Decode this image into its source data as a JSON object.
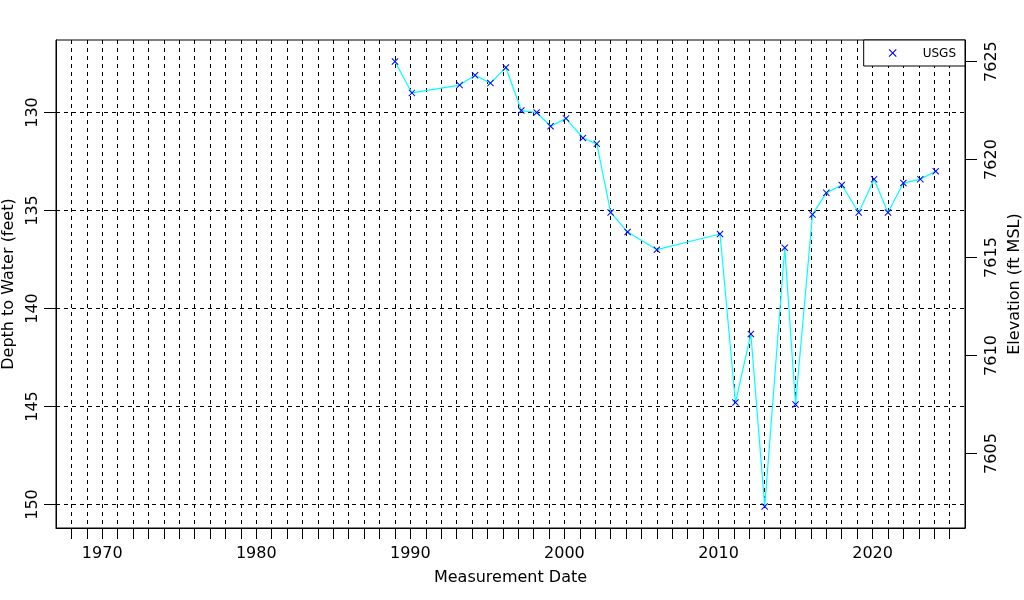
{
  "chart_data": {
    "type": "line",
    "xlabel": "Measurement Date",
    "ylabel": "Depth to Water (feet)",
    "y2label": "Elevation (ft MSL)",
    "xlim": [
      1967,
      2026
    ],
    "xticks": [
      {
        "value": 1968,
        "label": null
      },
      {
        "value": 1969,
        "label": null
      },
      1970,
      {
        "value": 1971,
        "label": null
      },
      {
        "value": 1972,
        "label": null
      },
      {
        "value": 1973,
        "label": null
      },
      {
        "value": 1974,
        "label": null
      },
      {
        "value": 1975,
        "label": null
      },
      {
        "value": 1976,
        "label": null
      },
      {
        "value": 1977,
        "label": null
      },
      {
        "value": 1978,
        "label": null
      },
      {
        "value": 1979,
        "label": null
      },
      1980,
      {
        "value": 1981,
        "label": null
      },
      {
        "value": 1982,
        "label": null
      },
      {
        "value": 1983,
        "label": null
      },
      {
        "value": 1984,
        "label": null
      },
      {
        "value": 1985,
        "label": null
      },
      {
        "value": 1986,
        "label": null
      },
      {
        "value": 1987,
        "label": null
      },
      {
        "value": 1988,
        "label": null
      },
      {
        "value": 1989,
        "label": null
      },
      1990,
      {
        "value": 1991,
        "label": null
      },
      {
        "value": 1992,
        "label": null
      },
      {
        "value": 1993,
        "label": null
      },
      {
        "value": 1994,
        "label": null
      },
      {
        "value": 1995,
        "label": null
      },
      {
        "value": 1996,
        "label": null
      },
      {
        "value": 1997,
        "label": null
      },
      {
        "value": 1998,
        "label": null
      },
      {
        "value": 1999,
        "label": null
      },
      2000,
      {
        "value": 2001,
        "label": null
      },
      {
        "value": 2002,
        "label": null
      },
      {
        "value": 2003,
        "label": null
      },
      {
        "value": 2004,
        "label": null
      },
      {
        "value": 2005,
        "label": null
      },
      {
        "value": 2006,
        "label": null
      },
      {
        "value": 2007,
        "label": null
      },
      {
        "value": 2008,
        "label": null
      },
      {
        "value": 2009,
        "label": null
      },
      2010,
      {
        "value": 2011,
        "label": null
      },
      {
        "value": 2012,
        "label": null
      },
      {
        "value": 2013,
        "label": null
      },
      {
        "value": 2014,
        "label": null
      },
      {
        "value": 2015,
        "label": null
      },
      {
        "value": 2016,
        "label": null
      },
      {
        "value": 2017,
        "label": null
      },
      {
        "value": 2018,
        "label": null
      },
      {
        "value": 2019,
        "label": null
      },
      2020,
      {
        "value": 2021,
        "label": null
      },
      {
        "value": 2022,
        "label": null
      },
      {
        "value": 2023,
        "label": null
      },
      {
        "value": 2024,
        "label": null
      },
      {
        "value": 2025,
        "label": null
      }
    ],
    "ylim": [
      151.2,
      126.3
    ],
    "yticks": [
      130,
      135,
      140,
      145,
      150
    ],
    "y2lim": [
      7601.2,
      7626.1
    ],
    "y2ticks": [
      7605,
      7610,
      7615,
      7620,
      7625
    ],
    "grid": true,
    "legend": "top right",
    "marker": "cross",
    "line_style": "solid",
    "series": [
      {
        "name": "USGS",
        "color": "#00ffff",
        "colors": [
          "#0000ff",
          "#0000ff",
          "#0000ff",
          "#0000ff",
          "#0000ff",
          "#0000ff",
          "#0000ff",
          "#0000ff",
          "#0000ff",
          "#0000ff",
          "#0000ff",
          "#0000ff",
          "#0000ff",
          "#0000ff",
          "#0000ff",
          "#0000ff",
          "#0000ff",
          "#0000ff",
          "#0000ff",
          "#0000ff",
          "#0000ff",
          "#0000ff",
          "#0000ff",
          "#0000ff",
          "#0000ff",
          "#0000ff",
          "#0000ff",
          "#0000ff",
          "#0000ff",
          "#0000ff"
        ],
        "x": [
          1989.0,
          1990.1,
          1993.2,
          1994.2,
          1995.2,
          1996.2,
          1997.2,
          1998.2,
          1999.1,
          2000.1,
          2001.2,
          2002.1,
          2003.0,
          2004.1,
          2006.0,
          2010.1,
          2011.1,
          2012.1,
          2013.0,
          2014.3,
          2015.0,
          2016.1,
          2017.0,
          2018.0,
          2019.1,
          2020.1,
          2021.0,
          2022.0,
          2023.1,
          2024.1
        ],
        "values": [
          127.4,
          129.0,
          128.6,
          128.1,
          128.5,
          127.7,
          129.9,
          130.0,
          130.7,
          130.3,
          131.3,
          131.6,
          135.1,
          136.1,
          137.0,
          136.2,
          144.8,
          141.3,
          150.1,
          136.9,
          144.9,
          135.2,
          134.1,
          133.7,
          135.1,
          133.4,
          135.1,
          133.6,
          133.4,
          133.0
        ]
      }
    ]
  }
}
